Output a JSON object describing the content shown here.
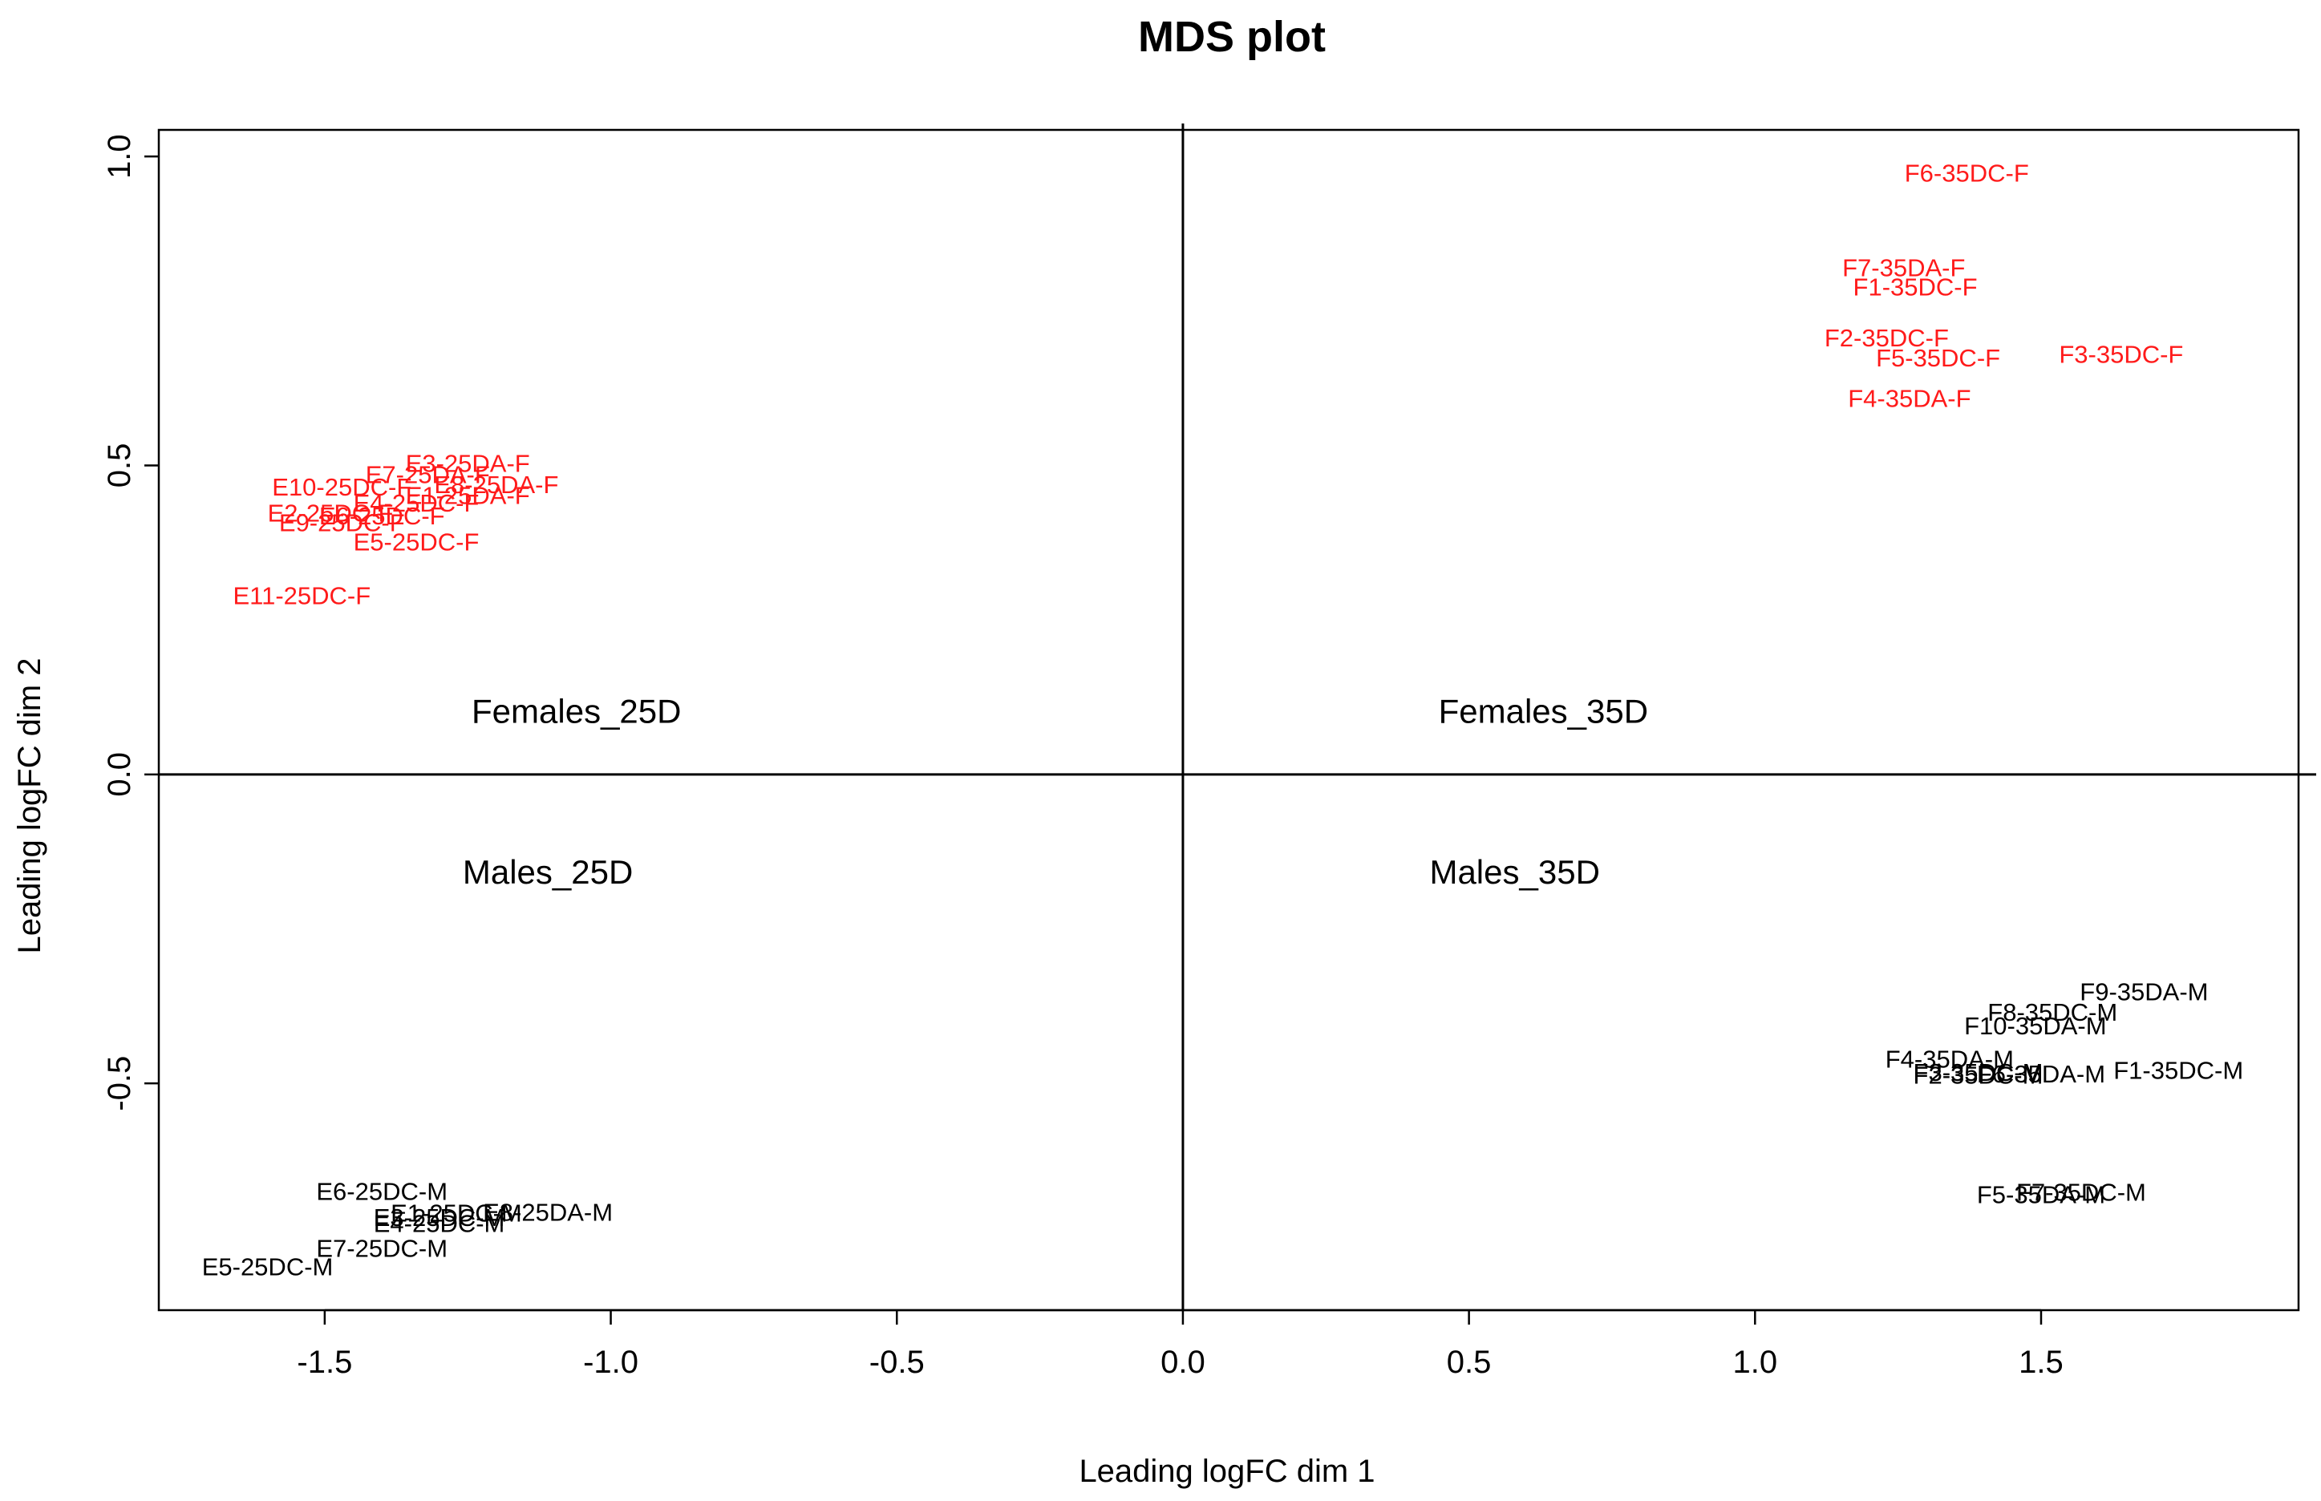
{
  "chart_data": {
    "type": "scatter",
    "title": "MDS plot",
    "xlabel": "Leading logFC dim 1",
    "ylabel": "Leading logFC dim 2",
    "xlim": [
      -1.79,
      1.95
    ],
    "ylim": [
      -0.867,
      1.043
    ],
    "x_ticks": [
      -1.5,
      -1.0,
      -0.5,
      0.0,
      0.5,
      1.0,
      1.5
    ],
    "x_tick_labels": [
      "-1.5",
      "-1.0",
      "-0.5",
      "0.0",
      "0.5",
      "1.0",
      "1.5"
    ],
    "y_ticks": [
      -0.5,
      0.0,
      0.5,
      1.0
    ],
    "y_tick_labels": [
      "-0.5",
      "0.0",
      "0.5",
      "1.0"
    ],
    "grid": false,
    "reference_lines": {
      "vertical_x": 0.0,
      "horizontal_y": 0.0
    },
    "quadrant_labels": [
      {
        "text": "Females_25D",
        "x": -1.06,
        "y": 0.098
      },
      {
        "text": "Females_35D",
        "x": 0.63,
        "y": 0.098
      },
      {
        "text": "Males_25D",
        "x": -1.11,
        "y": -0.162
      },
      {
        "text": "Males_35D",
        "x": 0.58,
        "y": -0.162
      }
    ],
    "colors": {
      "female": "#ff1a1a",
      "male": "#000000"
    },
    "series": [
      {
        "group": "female",
        "color": "#ff1a1a",
        "points": [
          {
            "label": "F6-35DC-F",
            "x": 1.37,
            "y": 0.97
          },
          {
            "label": "F7-35DA-F",
            "x": 1.26,
            "y": 0.817
          },
          {
            "label": "F1-35DC-F",
            "x": 1.28,
            "y": 0.786
          },
          {
            "label": "F2-35DC-F",
            "x": 1.23,
            "y": 0.703
          },
          {
            "label": "F5-35DC-F",
            "x": 1.32,
            "y": 0.671
          },
          {
            "label": "F3-35DC-F",
            "x": 1.64,
            "y": 0.677
          },
          {
            "label": "F4-35DA-F",
            "x": 1.27,
            "y": 0.605
          },
          {
            "label": "E3-25DA-F",
            "x": -1.25,
            "y": 0.5
          },
          {
            "label": "E7-25DA-F",
            "x": -1.32,
            "y": 0.482
          },
          {
            "label": "E8-25DA-F",
            "x": -1.2,
            "y": 0.466
          },
          {
            "label": "E10-25DC-F",
            "x": -1.47,
            "y": 0.462
          },
          {
            "label": "E1-25DA-F",
            "x": -1.25,
            "y": 0.448
          },
          {
            "label": "E4-25DC-F",
            "x": -1.34,
            "y": 0.436
          },
          {
            "label": "E2-25DC-F",
            "x": -1.49,
            "y": 0.42
          },
          {
            "label": "E6-25DC-F",
            "x": -1.4,
            "y": 0.415
          },
          {
            "label": "E9-25DC-F",
            "x": -1.47,
            "y": 0.404
          },
          {
            "label": "E5-25DC-F",
            "x": -1.34,
            "y": 0.373
          },
          {
            "label": "E11-25DC-F",
            "x": -1.54,
            "y": 0.286
          }
        ]
      },
      {
        "group": "male",
        "color": "#000000",
        "points": [
          {
            "label": "F9-35DA-M",
            "x": 1.68,
            "y": -0.355
          },
          {
            "label": "F8-35DC-M",
            "x": 1.52,
            "y": -0.388
          },
          {
            "label": "F10-35DA-M",
            "x": 1.49,
            "y": -0.41
          },
          {
            "label": "F4-35DA-M",
            "x": 1.34,
            "y": -0.464
          },
          {
            "label": "F6-35DA-M",
            "x": 1.5,
            "y": -0.488
          },
          {
            "label": "F3-35DC-M",
            "x": 1.39,
            "y": -0.485
          },
          {
            "label": "F2-35DC-M",
            "x": 1.39,
            "y": -0.49
          },
          {
            "label": "F1-35DC-M",
            "x": 1.74,
            "y": -0.482
          },
          {
            "label": "F5-35DA-M",
            "x": 1.5,
            "y": -0.683
          },
          {
            "label": "F7-35DC-M",
            "x": 1.57,
            "y": -0.679
          },
          {
            "label": "E6-25DC-M",
            "x": -1.4,
            "y": -0.678
          },
          {
            "label": "E8-25DA-M",
            "x": -1.11,
            "y": -0.712
          },
          {
            "label": "E1-25DC-M",
            "x": -1.27,
            "y": -0.713
          },
          {
            "label": "E3-25DC-M",
            "x": -1.3,
            "y": -0.72
          },
          {
            "label": "E4-25DC-M",
            "x": -1.3,
            "y": -0.73
          },
          {
            "label": "E7-25DC-M",
            "x": -1.4,
            "y": -0.77
          },
          {
            "label": "E5-25DC-M",
            "x": -1.6,
            "y": -0.8
          }
        ]
      }
    ]
  }
}
